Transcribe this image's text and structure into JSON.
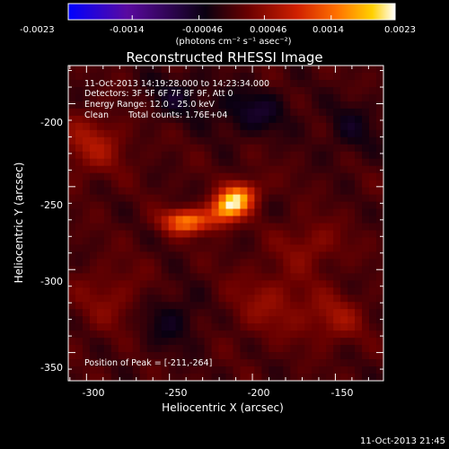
{
  "colorbar": {
    "ticks": [
      "-0.0023",
      "-0.0014",
      "-0.00046",
      "0.00046",
      "0.0014",
      "0.0023"
    ],
    "units_label": "(photons cm⁻² s⁻¹ asec⁻²)",
    "range": [
      -0.0023,
      0.0023
    ],
    "colors": [
      "#0000ff",
      "#5a0aa0",
      "#0a0010",
      "#6a0000",
      "#d02000",
      "#ff7000",
      "#ffd000",
      "#ffffff"
    ]
  },
  "image_title": "Reconstructed RHESSI Image",
  "info": {
    "time_range": "11-Oct-2013 14:19:28.000 to 14:23:34.000",
    "detectors": "Detectors: 3F 5F 6F 7F 8F 9F, Att 0",
    "energy": "Energy Range: 12.0 - 25.0 keV",
    "clean_label": "Clean",
    "total_counts": "Total counts: 1.76E+04",
    "peak": "Position of Peak = [-211,-264]"
  },
  "footer_timestamp": "11-Oct-2013 21:45",
  "chart_data": {
    "type": "heatmap",
    "title": "Reconstructed RHESSI Image",
    "xlabel": "Heliocentric X (arcsec)",
    "ylabel": "Heliocentric Y (arcsec)",
    "x_ticks": [
      "-300",
      "-250",
      "-200",
      "-150"
    ],
    "x_tick_values": [
      -300,
      -250,
      -200,
      -150
    ],
    "y_ticks": [
      "-200",
      "-250",
      "-300",
      "-350"
    ],
    "y_tick_values": [
      -200,
      -250,
      -300,
      -350
    ],
    "xlim": [
      -311,
      -121
    ],
    "ylim": [
      -367,
      -177
    ],
    "colorbar_range": [
      -0.0023,
      0.0023
    ],
    "peak_position": [
      -211,
      -264
    ],
    "sources": [
      {
        "x": -212,
        "y": -260,
        "sigma_x": 10,
        "sigma_y": 6,
        "angle_deg": 35,
        "amplitude": 0.0023
      },
      {
        "x": -240,
        "y": -271,
        "sigma_x": 10,
        "sigma_y": 5,
        "angle_deg": 0,
        "amplitude": 0.0015
      },
      {
        "x": -297,
        "y": -225,
        "sigma_x": 14,
        "sigma_y": 12,
        "angle_deg": 0,
        "amplitude": 0.0006
      },
      {
        "x": -188,
        "y": -320,
        "sigma_x": 18,
        "sigma_y": 14,
        "angle_deg": 0,
        "amplitude": 0.00045
      },
      {
        "x": -150,
        "y": -330,
        "sigma_x": 12,
        "sigma_y": 10,
        "angle_deg": 0,
        "amplitude": 0.0005
      },
      {
        "x": -285,
        "y": -318,
        "sigma_x": 16,
        "sigma_y": 14,
        "angle_deg": 0,
        "amplitude": 0.00035
      },
      {
        "x": -165,
        "y": -285,
        "sigma_x": 14,
        "sigma_y": 10,
        "angle_deg": 0,
        "amplitude": 0.0004
      },
      {
        "x": -200,
        "y": -205,
        "sigma_x": 16,
        "sigma_y": 10,
        "angle_deg": 0,
        "amplitude": -0.0005
      },
      {
        "x": -245,
        "y": -195,
        "sigma_x": 14,
        "sigma_y": 10,
        "angle_deg": 0,
        "amplitude": -0.0004
      },
      {
        "x": -250,
        "y": -330,
        "sigma_x": 14,
        "sigma_y": 12,
        "angle_deg": 0,
        "amplitude": -0.0004
      },
      {
        "x": -140,
        "y": -215,
        "sigma_x": 12,
        "sigma_y": 12,
        "angle_deg": 0,
        "amplitude": -0.00035
      }
    ]
  }
}
